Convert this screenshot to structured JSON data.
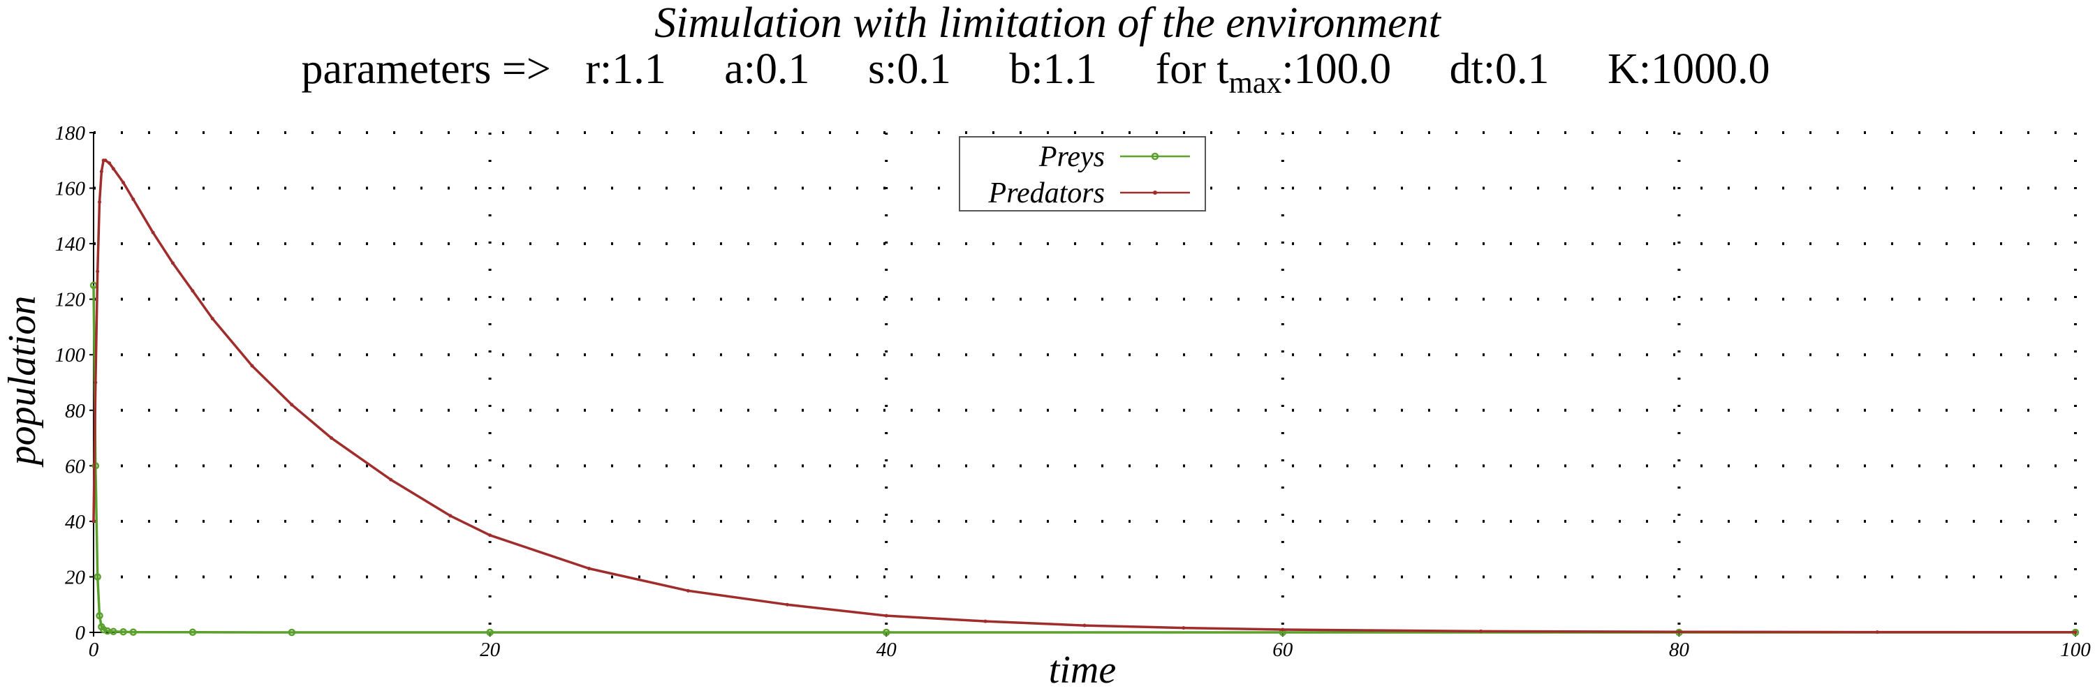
{
  "chart_data": {
    "type": "line",
    "title": "Simulation with limitation of the environment",
    "parameters": {
      "prefix": "parameters =>",
      "items": [
        {
          "text": "r:1.1"
        },
        {
          "text": "a:0.1"
        },
        {
          "text": "s:0.1"
        },
        {
          "text": "b:1.1"
        },
        {
          "text": "for t",
          "sub": "max",
          "after": ":100.0"
        },
        {
          "text": "dt:0.1"
        },
        {
          "text": "K:1000.0"
        }
      ]
    },
    "xlabel": "time",
    "ylabel": "population",
    "xlim": [
      0,
      100
    ],
    "ylim": [
      0,
      180
    ],
    "xticks": [
      0,
      20,
      40,
      60,
      80,
      100
    ],
    "yticks": [
      0,
      20,
      40,
      60,
      80,
      100,
      120,
      140,
      160,
      180
    ],
    "grid": true,
    "legend_position": "top-center",
    "series": [
      {
        "name": "Preys",
        "color": "#5aa02c",
        "marker": "circle",
        "x": [
          0,
          0.1,
          0.2,
          0.3,
          0.4,
          0.5,
          0.7,
          1,
          1.5,
          2,
          5,
          10,
          20,
          40,
          60,
          80,
          100
        ],
        "y": [
          125,
          60,
          20,
          6,
          2,
          1,
          0.5,
          0.3,
          0.2,
          0.1,
          0.05,
          0,
          0,
          0,
          0,
          0,
          0
        ]
      },
      {
        "name": "Predators",
        "color": "#a02c2c",
        "marker": "dot",
        "x": [
          0,
          0.1,
          0.2,
          0.3,
          0.4,
          0.5,
          0.6,
          0.8,
          1,
          1.5,
          2,
          3,
          4,
          5,
          6,
          8,
          10,
          12,
          15,
          18,
          20,
          25,
          30,
          35,
          40,
          45,
          50,
          55,
          60,
          70,
          80,
          90,
          100
        ],
        "y": [
          40,
          90,
          130,
          155,
          166,
          170,
          170,
          169,
          167,
          162,
          156,
          144,
          133,
          123,
          113,
          96,
          82,
          70,
          55,
          42,
          35,
          23,
          15,
          10,
          6,
          4,
          2.5,
          1.6,
          1,
          0.4,
          0.2,
          0.1,
          0.05
        ]
      }
    ]
  }
}
